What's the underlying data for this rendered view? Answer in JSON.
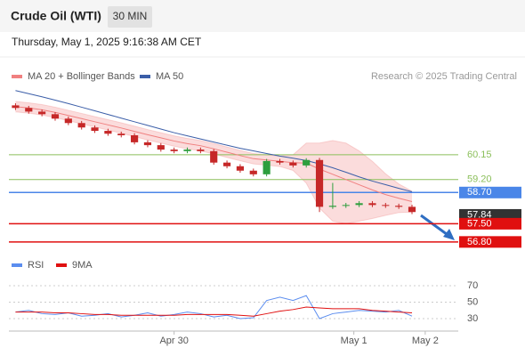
{
  "header": {
    "title": "Crude Oil (WTI)",
    "interval": "30 MIN",
    "datetime": "Thursday, May 1, 2025 9:16:38 AM CET",
    "credit": "Research © 2025 Trading Central"
  },
  "chart_data": [
    {
      "type": "candlestick",
      "x": [
        0,
        1,
        2,
        3,
        4,
        5,
        6,
        7,
        8,
        9,
        10,
        11,
        12,
        13,
        14,
        15,
        16,
        17,
        18,
        19,
        20,
        21,
        22,
        23,
        24,
        25,
        26,
        27,
        28,
        29,
        30
      ],
      "open": [
        62.05,
        61.95,
        61.81,
        61.71,
        61.54,
        61.37,
        61.2,
        61.07,
        60.96,
        60.9,
        60.63,
        60.52,
        60.35,
        60.29,
        60.35,
        60.29,
        59.85,
        59.71,
        59.54,
        59.4,
        59.91,
        59.85,
        59.74,
        59.95,
        58.15,
        58.19,
        58.22,
        58.29,
        58.22,
        58.19,
        58.15
      ],
      "high": [
        62.13,
        62.03,
        61.89,
        61.79,
        61.62,
        61.45,
        61.28,
        61.15,
        61.04,
        60.98,
        60.71,
        60.6,
        60.43,
        60.43,
        60.43,
        60.37,
        59.93,
        59.79,
        59.62,
        59.99,
        59.99,
        59.93,
        60.02,
        60.03,
        59.07,
        58.3,
        58.37,
        58.37,
        58.3,
        58.27,
        58.23
      ],
      "low": [
        61.87,
        61.73,
        61.63,
        61.46,
        61.29,
        61.12,
        60.99,
        60.88,
        60.82,
        60.55,
        60.44,
        60.27,
        60.21,
        60.21,
        60.21,
        59.77,
        59.63,
        59.46,
        59.32,
        59.32,
        59.77,
        59.66,
        59.66,
        57.95,
        58.07,
        58.11,
        58.14,
        58.14,
        58.11,
        58.07,
        57.87
      ],
      "close": [
        61.95,
        61.81,
        61.71,
        61.54,
        61.37,
        61.2,
        61.07,
        60.96,
        60.9,
        60.63,
        60.52,
        60.35,
        60.29,
        60.35,
        60.29,
        59.85,
        59.71,
        59.54,
        59.4,
        59.91,
        59.85,
        59.74,
        59.95,
        58.15,
        58.19,
        58.22,
        58.29,
        58.22,
        58.19,
        58.15,
        57.95
      ],
      "up_color": "#2e9e3e",
      "down_color": "#c62828",
      "series": [
        {
          "name": "MA 20 + Bollinger Bands",
          "color": "#f08080",
          "values": [
            62.0,
            61.95,
            61.88,
            61.78,
            61.66,
            61.54,
            61.42,
            61.3,
            61.18,
            61.05,
            60.92,
            60.8,
            60.68,
            60.58,
            60.5,
            60.38,
            60.25,
            60.12,
            60.0,
            59.95,
            59.9,
            59.85,
            59.83,
            59.6,
            59.4,
            59.2,
            59.0,
            58.8,
            58.62,
            58.48,
            58.35
          ],
          "upper": [
            62.2,
            62.15,
            62.08,
            61.98,
            61.86,
            61.74,
            61.62,
            61.5,
            61.38,
            61.25,
            61.12,
            61.0,
            60.88,
            60.78,
            60.7,
            60.58,
            60.45,
            60.32,
            60.2,
            60.15,
            60.1,
            60.15,
            60.6,
            60.6,
            60.7,
            60.6,
            60.3,
            59.9,
            59.42,
            59.03,
            58.75
          ],
          "lower": [
            61.8,
            61.75,
            61.68,
            61.58,
            61.46,
            61.34,
            61.22,
            61.1,
            60.98,
            60.85,
            60.72,
            60.6,
            60.48,
            60.38,
            60.3,
            60.18,
            60.05,
            59.92,
            59.8,
            59.75,
            59.7,
            59.55,
            59.06,
            58.1,
            57.6,
            57.5,
            57.6,
            57.7,
            57.82,
            57.93,
            57.95
          ]
        },
        {
          "name": "MA 50",
          "color": "#3b5ea8",
          "values": [
            62.62,
            62.5,
            62.38,
            62.25,
            62.12,
            61.98,
            61.84,
            61.7,
            61.56,
            61.42,
            61.28,
            61.14,
            61.0,
            60.88,
            60.76,
            60.64,
            60.52,
            60.4,
            60.3,
            60.2,
            60.1,
            60.02,
            59.93,
            59.8,
            59.65,
            59.48,
            59.3,
            59.14,
            59.0,
            58.86,
            58.73
          ]
        }
      ],
      "levels": [
        {
          "value": 60.15,
          "label": "60.15",
          "color": "#8bbf5a",
          "line": true,
          "label_style": "text"
        },
        {
          "value": 59.2,
          "label": "59.20",
          "color": "#8bbf5a",
          "line": true,
          "label_style": "text"
        },
        {
          "value": 58.7,
          "label": "58.70",
          "color": "#4a86e8",
          "line": true,
          "label_style": "box"
        },
        {
          "value": 57.84,
          "label": "57.84",
          "color": "#333333",
          "line": false,
          "label_style": "box"
        },
        {
          "value": 57.5,
          "label": "57.50",
          "color": "#e01010",
          "line": true,
          "label_style": "box"
        },
        {
          "value": 56.8,
          "label": "56.80",
          "color": "#e01010",
          "line": true,
          "label_style": "box"
        }
      ],
      "xlim": [
        -0.5,
        33.5
      ],
      "ylim": [
        56.35,
        62.85
      ]
    },
    {
      "type": "line",
      "x": [
        0,
        1,
        2,
        3,
        4,
        5,
        6,
        7,
        8,
        9,
        10,
        11,
        12,
        13,
        14,
        15,
        16,
        17,
        18,
        19,
        20,
        21,
        22,
        23,
        24,
        25,
        26,
        27,
        28,
        29,
        30
      ],
      "series": [
        {
          "name": "RSI",
          "color": "#5b8def",
          "values": [
            38,
            40,
            36,
            35,
            37,
            33,
            34,
            36,
            32,
            34,
            37,
            33,
            35,
            38,
            36,
            32,
            34,
            30,
            31,
            52,
            56,
            52,
            58,
            30,
            36,
            38,
            40,
            39,
            38,
            40,
            33
          ]
        },
        {
          "name": "9MA",
          "color": "#e01010",
          "values": [
            38,
            38,
            38,
            37,
            37,
            36,
            35,
            35,
            34,
            34,
            34,
            34,
            34,
            35,
            35,
            35,
            35,
            34,
            33,
            36,
            39,
            41,
            44,
            43,
            42,
            42,
            42,
            40,
            39,
            38,
            37
          ]
        }
      ],
      "xlim": [
        -0.5,
        33.5
      ],
      "ylim": [
        17,
        76.5
      ],
      "yticks": [
        30,
        50,
        70
      ],
      "grid": true,
      "xticks": [
        {
          "value": 12,
          "label": "Apr 30"
        },
        {
          "value": 25.6,
          "label": "May 1"
        },
        {
          "value": 31,
          "label": "May 2"
        }
      ]
    }
  ]
}
